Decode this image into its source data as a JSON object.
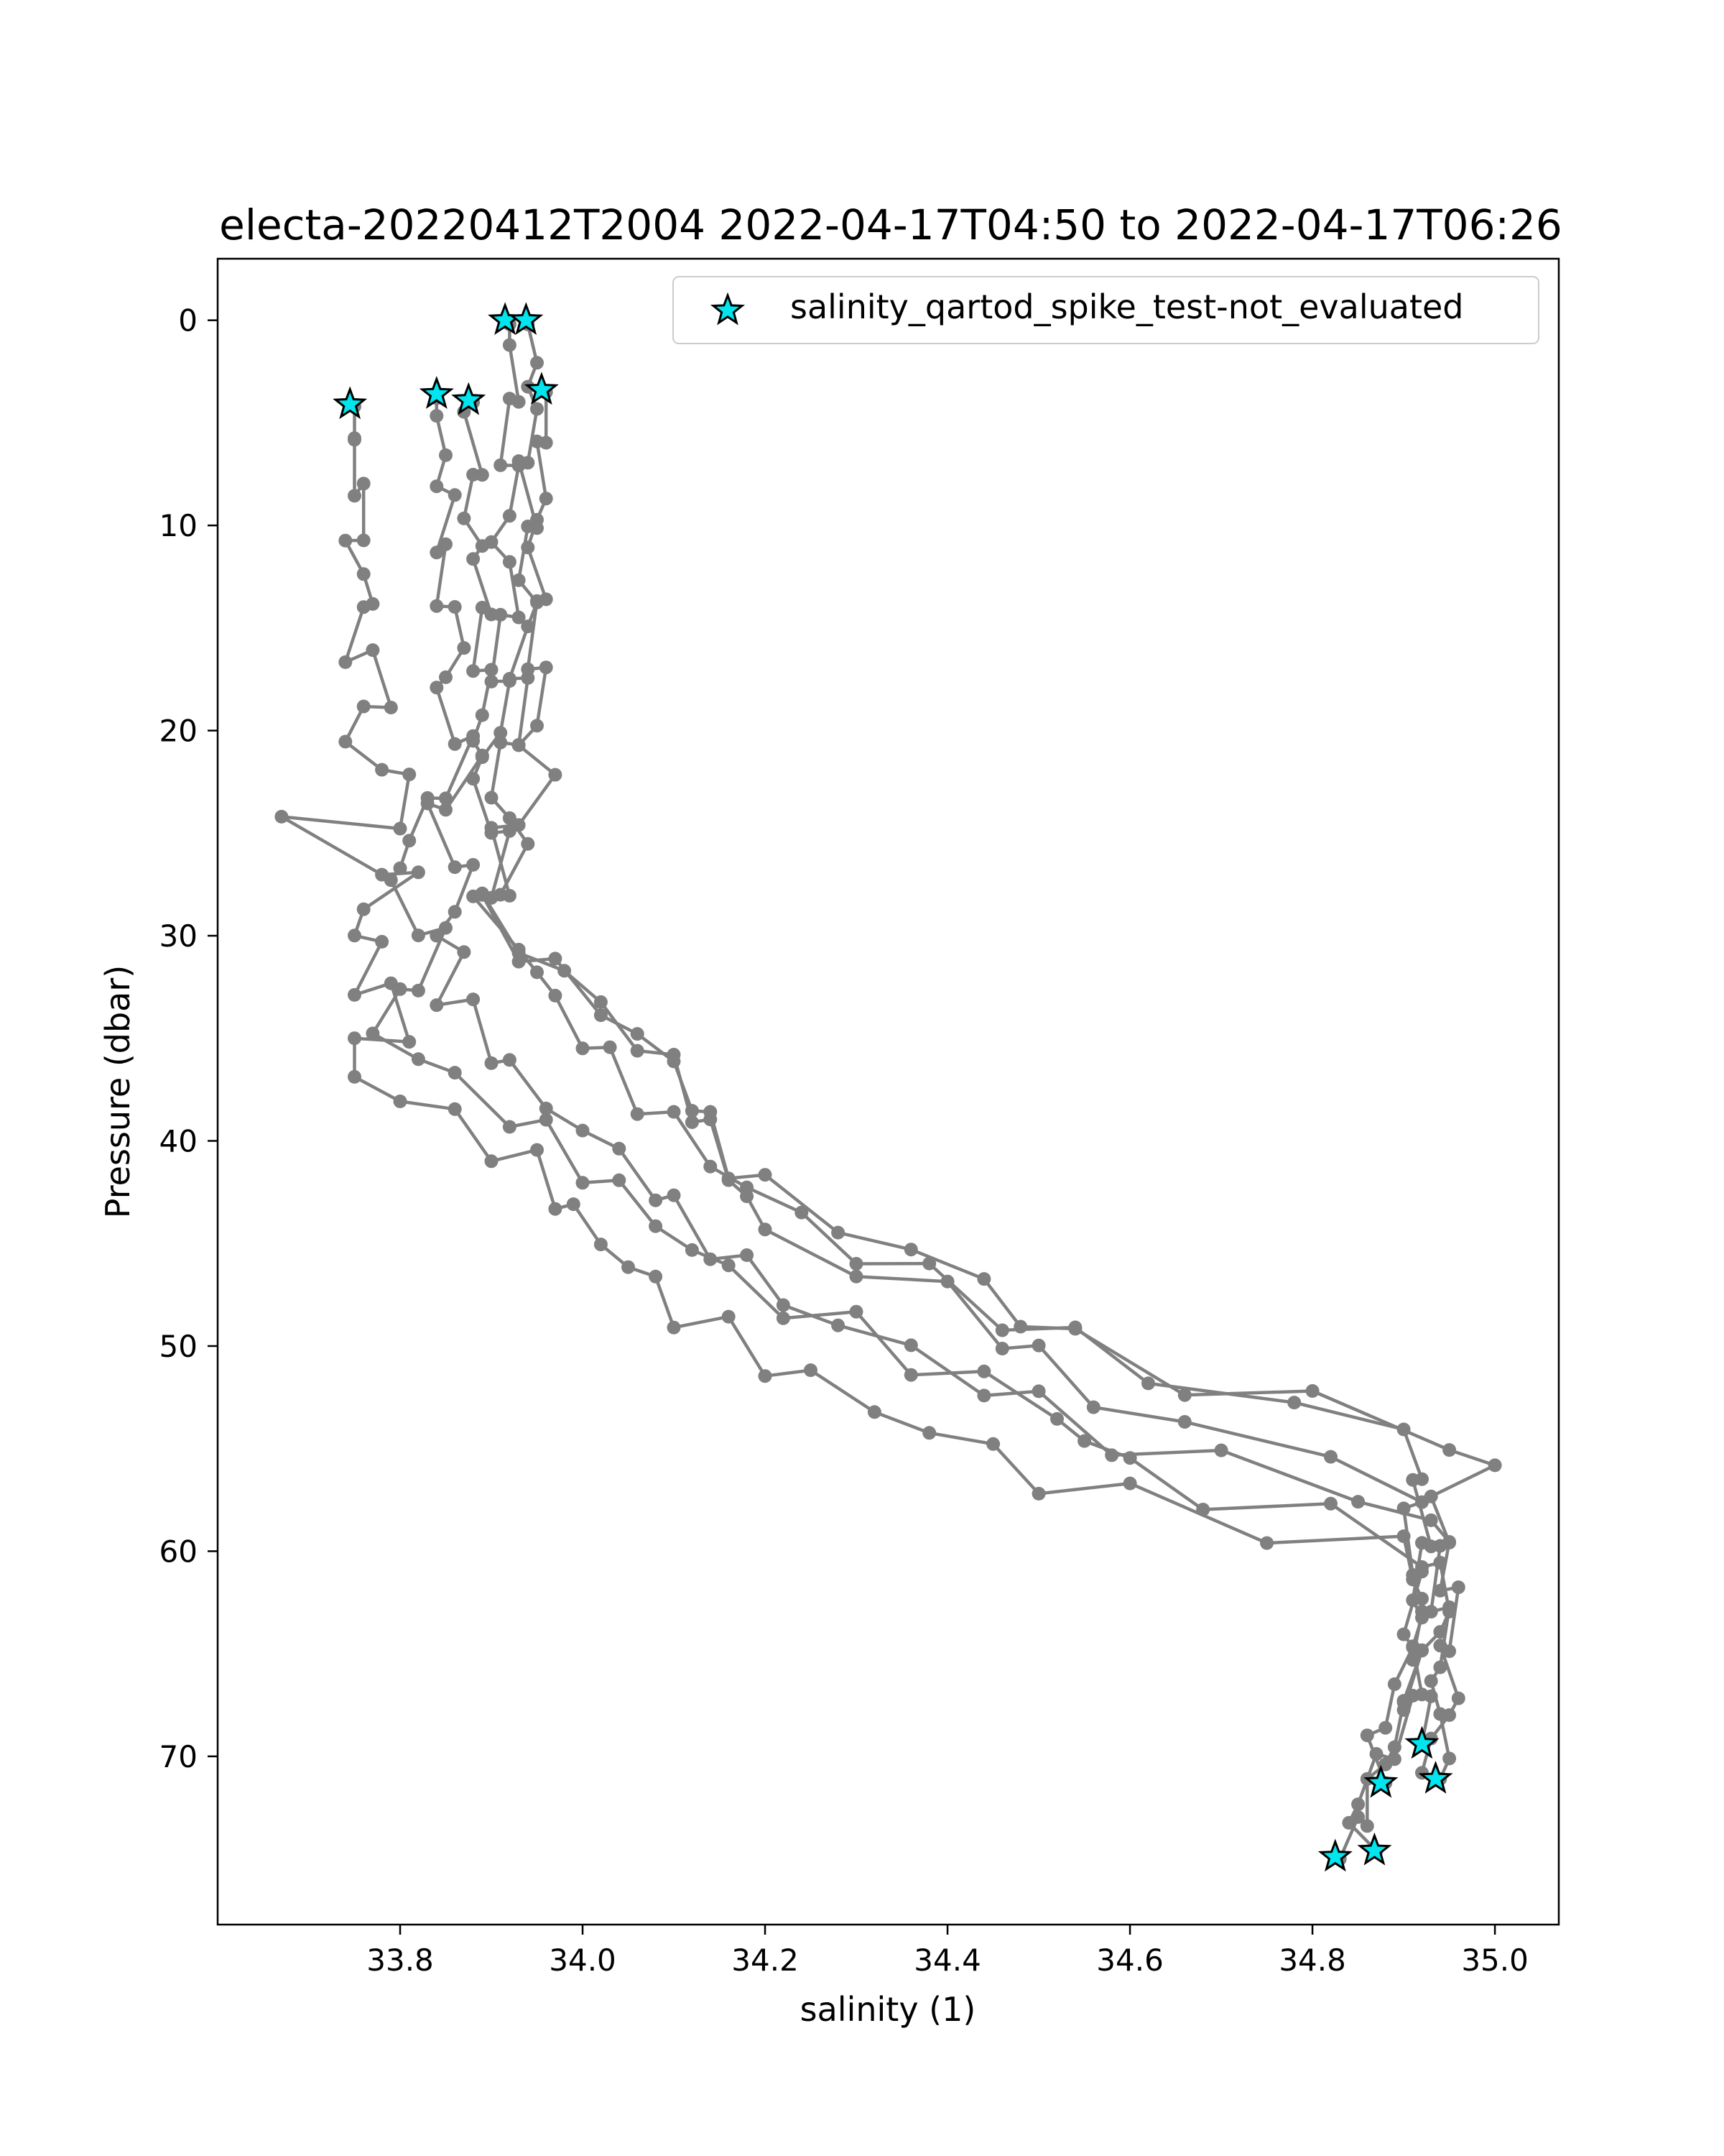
{
  "chart_data": {
    "type": "scatter",
    "title": "electa-20220412T2004 2022-04-17T04:50 to 2022-04-17T06:26",
    "xlabel": "salinity (1)",
    "ylabel": "Pressure (dbar)",
    "xlim": [
      33.6,
      35.07
    ],
    "ylim": [
      78.2,
      -3.0
    ],
    "y_inverted": true,
    "grid": false,
    "legend_position": "top-right",
    "xticks": [
      "33.8",
      "34.0",
      "34.2",
      "34.4",
      "34.6",
      "34.8",
      "35.0"
    ],
    "yticks": [
      "0",
      "10",
      "20",
      "30",
      "40",
      "50",
      "60",
      "70"
    ],
    "colors": {
      "line": "#808080",
      "marker": "#808080",
      "flag": "#00e5ee",
      "flag_edge": "#000000"
    },
    "series": [
      {
        "style": "line-markers",
        "x": [
          33.75,
          33.75,
          33.75,
          33.75,
          33.76,
          33.76,
          33.74,
          33.76,
          33.77,
          33.76,
          33.74,
          33.77,
          33.79,
          33.76,
          33.74,
          33.78,
          33.81,
          33.8,
          33.67,
          33.78,
          33.82,
          33.76,
          33.75,
          33.78,
          33.75,
          33.79,
          33.81,
          33.75,
          33.75,
          33.8,
          33.86,
          33.9,
          33.95,
          33.97,
          33.99,
          34.02,
          34.05,
          34.08,
          34.1,
          34.16,
          34.2,
          34.25,
          34.32,
          34.38,
          34.45,
          34.5,
          34.6,
          34.75,
          34.9,
          34.91,
          34.92,
          34.92,
          34.91,
          34.92,
          34.9,
          34.9,
          34.89,
          34.88,
          34.86,
          34.86,
          34.85,
          34.83
        ]
      },
      {
        "style": "line-markers",
        "x": [
          33.84,
          33.84,
          33.85,
          33.84,
          33.86,
          33.84,
          33.85,
          33.84,
          33.86,
          33.87,
          33.85,
          33.84,
          33.86,
          33.88,
          33.85,
          33.83,
          33.81,
          33.8,
          33.79,
          33.82,
          33.85,
          33.82,
          33.8,
          33.77,
          33.82,
          33.86,
          33.92,
          33.96,
          34.0,
          34.04,
          34.08,
          34.12,
          34.16,
          34.22,
          34.3,
          34.36,
          34.44,
          34.52,
          34.55,
          34.6,
          34.68,
          34.82,
          34.92,
          34.94,
          34.95,
          34.94,
          34.92,
          34.9,
          34.91,
          34.89,
          34.87,
          34.85,
          34.84,
          34.87
        ]
      },
      {
        "style": "line-markers",
        "x": [
          33.88,
          33.87,
          33.89,
          33.88,
          33.87,
          33.89,
          33.88,
          33.9,
          33.89,
          33.88,
          33.9,
          33.89,
          33.88,
          33.89,
          33.85,
          33.83,
          33.86,
          33.88,
          33.86,
          33.84,
          33.87,
          33.84,
          33.88,
          33.9,
          33.92,
          33.96,
          34.0,
          34.04,
          34.08,
          34.1,
          34.14,
          34.18,
          34.22,
          34.28,
          34.36,
          34.44,
          34.5,
          34.58,
          34.7,
          34.85,
          34.93,
          34.95,
          34.94,
          34.96,
          34.95,
          34.94,
          34.96,
          34.95,
          34.93,
          34.92
        ]
      },
      {
        "style": "line-markers",
        "x": [
          33.92,
          33.92,
          33.93,
          33.92,
          33.91,
          33.93,
          33.92,
          33.9,
          33.92,
          33.93,
          33.91,
          33.9,
          33.92,
          33.91,
          33.89,
          33.88,
          33.9,
          33.92,
          33.9,
          33.88,
          33.93,
          33.95,
          33.97,
          34.0,
          34.03,
          34.06,
          34.1,
          34.14,
          34.18,
          34.24,
          34.3,
          34.38,
          34.46,
          34.54,
          34.62,
          34.78,
          34.9,
          34.92,
          34.91,
          34.93,
          34.92,
          34.91,
          34.92,
          34.91,
          34.92,
          34.93,
          34.92
        ]
      },
      {
        "style": "line-markers",
        "x": [
          33.94,
          33.95,
          33.94,
          33.95,
          33.94,
          33.93,
          33.95,
          33.94,
          33.93,
          33.95,
          33.94,
          33.92,
          33.94,
          33.93,
          33.91,
          33.9,
          33.92,
          33.94,
          33.91,
          33.89,
          33.93,
          33.97,
          34.02,
          34.06,
          34.1,
          34.12,
          34.14,
          34.16,
          34.2,
          34.28,
          34.36,
          34.44,
          34.48,
          34.54,
          34.66,
          34.8,
          34.95,
          35.0,
          34.93,
          34.95,
          34.94,
          34.93,
          34.95,
          34.94,
          34.93,
          34.94,
          34.95,
          34.94
        ]
      },
      {
        "style": "line-markers",
        "x": [
          33.96,
          33.96,
          33.95,
          33.96,
          33.95,
          33.94,
          33.96,
          33.95,
          33.94,
          33.96,
          33.95,
          33.93,
          33.97,
          33.93,
          33.9,
          33.92,
          33.89,
          33.93,
          33.98,
          34.02,
          34.06,
          34.1,
          34.12,
          34.14,
          34.16,
          34.18,
          34.2,
          34.3,
          34.4,
          34.46,
          34.5,
          34.56,
          34.66,
          34.82,
          34.92,
          34.9,
          34.91,
          34.92,
          34.9,
          34.91,
          34.89,
          34.88,
          34.86,
          34.88
        ]
      }
    ],
    "flagged_points": {
      "label": "salinity_qartod_spike_test-not_evaluated",
      "x": [
        33.915,
        33.938,
        33.955,
        33.745,
        33.84,
        33.875,
        34.92,
        34.935,
        34.875,
        34.825,
        34.868
      ],
      "y": [
        0.0,
        0.0,
        3.4,
        4.1,
        3.6,
        3.9,
        69.4,
        71.1,
        71.3,
        74.9,
        74.6
      ]
    }
  }
}
